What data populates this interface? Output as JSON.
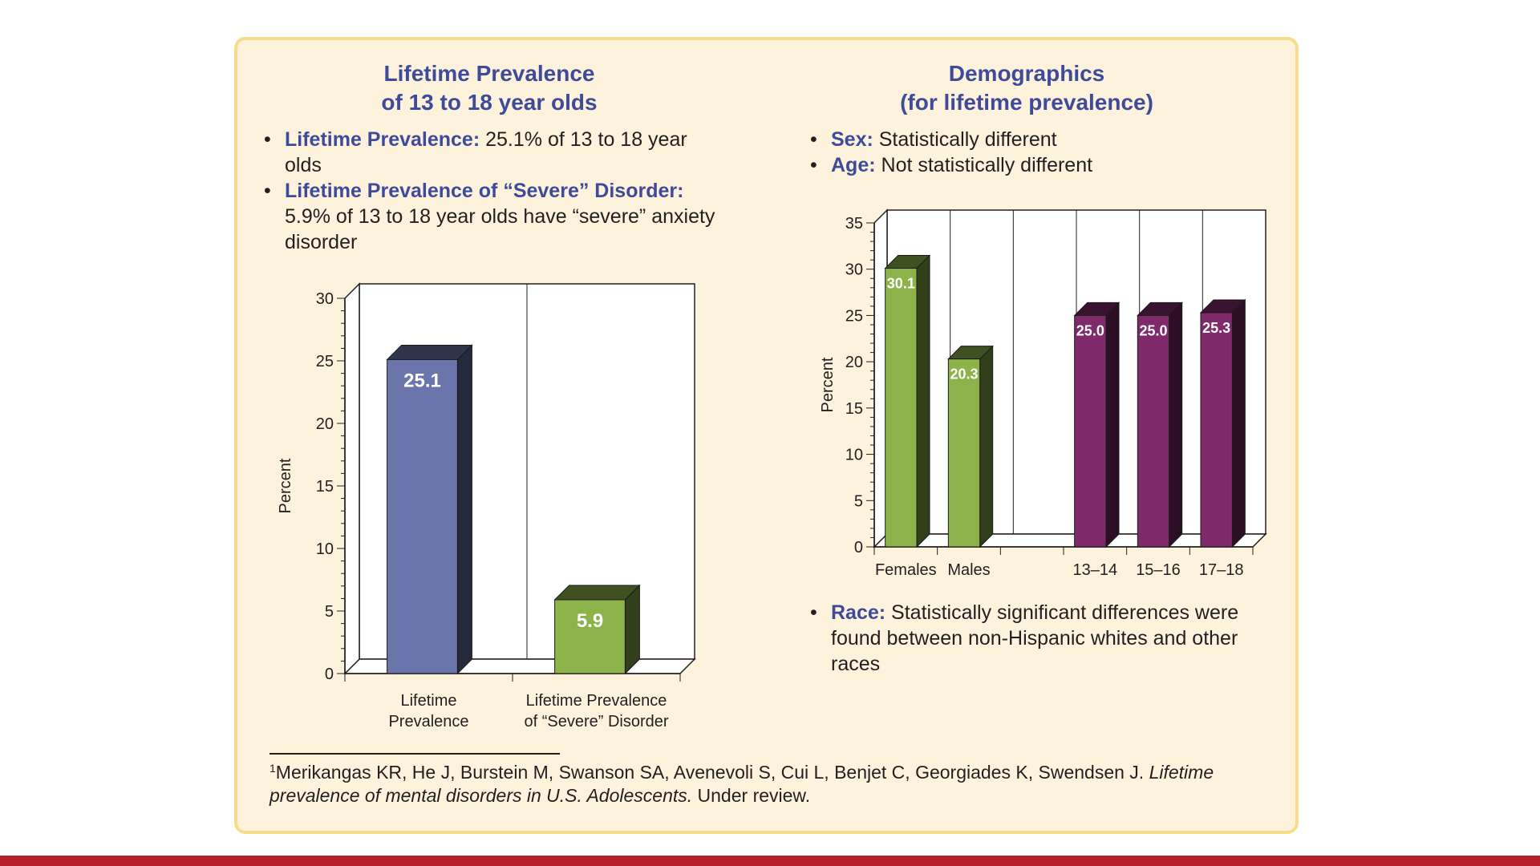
{
  "left": {
    "title_line1": "Lifetime Prevalence",
    "title_line2": "of 13 to 18 year olds",
    "bullets": [
      {
        "label": "Lifetime Prevalence:",
        "text": " 25.1% of 13 to 18 year olds"
      },
      {
        "label": "Lifetime Prevalence of “Severe” Disorder:",
        "text": " 5.9% of 13 to 18 year olds have “severe” anxiety disorder"
      }
    ]
  },
  "right": {
    "title_line1": "Demographics",
    "title_line2": "(for lifetime prevalence)",
    "bullets": [
      {
        "label": "Sex:",
        "text": " Statistically different"
      },
      {
        "label": "Age:",
        "text": " Not statistically different"
      }
    ],
    "race_bullet": {
      "label": "Race:",
      "text": " Statistically significant differences were found between non-Hispanic whites and other races"
    }
  },
  "footnote": {
    "marker": "1",
    "text_plain": "Merikangas KR, He J, Burstein M, Swanson SA, Avenevoli S, Cui L, Benjet C, Georgiades K, Swendsen J. ",
    "text_italic": "Lifetime prevalence of mental disorders in U.S. Adolescents.",
    "text_end": " Under review."
  },
  "colors": {
    "title_blue": "#3f4a9b",
    "bar_blue": "#6a75ab",
    "bar_green": "#8bb34a",
    "bar_purple": "#7e2a6b",
    "panel_bg": "#fdf2dc",
    "panel_border": "#f7dc8c",
    "bottom_bar": "#b41f2a"
  },
  "chart_data": [
    {
      "type": "bar",
      "categories": [
        [
          "Lifetime",
          "Prevalence"
        ],
        [
          "Lifetime Prevalence",
          "of “Severe” Disorder"
        ]
      ],
      "values": [
        25.1,
        5.9
      ],
      "value_labels": [
        "25.1",
        "5.9"
      ],
      "bar_colors": [
        "#6a75ab",
        "#8bb34a"
      ],
      "ylabel": "Percent",
      "ylim": [
        0,
        30
      ],
      "yticks": [
        0,
        5,
        10,
        15,
        20,
        25,
        30
      ],
      "grid": false
    },
    {
      "type": "bar",
      "categories": [
        "Females",
        "Males",
        "",
        "13–14",
        "15–16",
        "17–18"
      ],
      "values": [
        30.1,
        20.3,
        null,
        25.0,
        25.0,
        25.3
      ],
      "value_labels": [
        "30.1",
        "20.3",
        "",
        "25.0",
        "25.0",
        "25.3"
      ],
      "bar_colors": [
        "#8bb34a",
        "#8bb34a",
        "",
        "#7e2a6b",
        "#7e2a6b",
        "#7e2a6b"
      ],
      "ylabel": "Percent",
      "ylim": [
        0,
        35
      ],
      "yticks": [
        0,
        5,
        10,
        15,
        20,
        25,
        30,
        35
      ],
      "grid": false
    }
  ]
}
